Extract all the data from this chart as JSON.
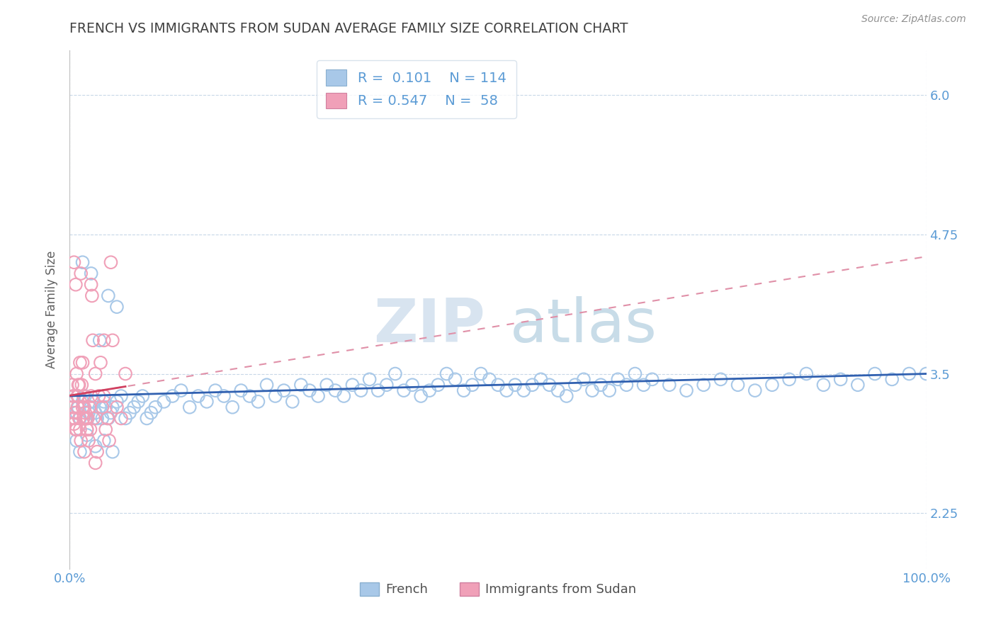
{
  "title": "FRENCH VS IMMIGRANTS FROM SUDAN AVERAGE FAMILY SIZE CORRELATION CHART",
  "source_text": "Source: ZipAtlas.com",
  "ylabel": "Average Family Size",
  "x_tick_labels": [
    "0.0%",
    "100.0%"
  ],
  "y_ticks": [
    2.25,
    3.5,
    4.75,
    6.0
  ],
  "x_min": 0.0,
  "x_max": 1.0,
  "y_min": 1.75,
  "y_max": 6.4,
  "french_color": "#a8c8e8",
  "sudan_color": "#f0a0b8",
  "french_line_color": "#3060b0",
  "sudan_line_color": "#d04060",
  "sudan_line_dashed_color": "#e090a8",
  "title_color": "#404040",
  "axis_label_color": "#5b9bd5",
  "ylabel_color": "#606060",
  "watermark_zip_color": "#d8e4f0",
  "watermark_atlas_color": "#c8dce8",
  "grid_color": "#c8d8e8",
  "border_color": "#c0c0c0",
  "french_scatter_x": [
    0.005,
    0.008,
    0.01,
    0.012,
    0.015,
    0.018,
    0.02,
    0.022,
    0.025,
    0.028,
    0.03,
    0.032,
    0.035,
    0.038,
    0.04,
    0.042,
    0.045,
    0.048,
    0.05,
    0.055,
    0.06,
    0.065,
    0.07,
    0.075,
    0.08,
    0.085,
    0.09,
    0.095,
    0.1,
    0.11,
    0.12,
    0.13,
    0.14,
    0.15,
    0.16,
    0.17,
    0.18,
    0.19,
    0.2,
    0.21,
    0.22,
    0.23,
    0.24,
    0.25,
    0.26,
    0.27,
    0.28,
    0.29,
    0.3,
    0.31,
    0.32,
    0.33,
    0.34,
    0.35,
    0.36,
    0.37,
    0.38,
    0.39,
    0.4,
    0.41,
    0.42,
    0.43,
    0.44,
    0.45,
    0.46,
    0.47,
    0.48,
    0.49,
    0.5,
    0.51,
    0.52,
    0.53,
    0.54,
    0.55,
    0.56,
    0.57,
    0.58,
    0.59,
    0.6,
    0.61,
    0.62,
    0.63,
    0.64,
    0.65,
    0.66,
    0.67,
    0.68,
    0.7,
    0.72,
    0.74,
    0.76,
    0.78,
    0.8,
    0.82,
    0.84,
    0.86,
    0.88,
    0.9,
    0.92,
    0.94,
    0.96,
    0.98,
    1.0,
    0.015,
    0.025,
    0.035,
    0.045,
    0.055,
    0.008,
    0.012,
    0.02,
    0.03,
    0.04,
    0.05
  ],
  "french_scatter_y": [
    3.3,
    3.15,
    3.2,
    3.1,
    3.25,
    3.3,
    3.1,
    3.15,
    3.2,
    3.25,
    3.15,
    3.1,
    3.2,
    3.1,
    3.25,
    3.2,
    3.1,
    3.15,
    3.2,
    3.25,
    3.3,
    3.1,
    3.15,
    3.2,
    3.25,
    3.3,
    3.1,
    3.15,
    3.2,
    3.25,
    3.3,
    3.35,
    3.2,
    3.3,
    3.25,
    3.35,
    3.3,
    3.2,
    3.35,
    3.3,
    3.25,
    3.4,
    3.3,
    3.35,
    3.25,
    3.4,
    3.35,
    3.3,
    3.4,
    3.35,
    3.3,
    3.4,
    3.35,
    3.45,
    3.35,
    3.4,
    3.5,
    3.35,
    3.4,
    3.3,
    3.35,
    3.4,
    3.5,
    3.45,
    3.35,
    3.4,
    3.5,
    3.45,
    3.4,
    3.35,
    3.4,
    3.35,
    3.4,
    3.45,
    3.4,
    3.35,
    3.3,
    3.4,
    3.45,
    3.35,
    3.4,
    3.35,
    3.45,
    3.4,
    3.5,
    3.4,
    3.45,
    3.4,
    3.35,
    3.4,
    3.45,
    3.4,
    3.35,
    3.4,
    3.45,
    3.5,
    3.4,
    3.45,
    3.4,
    3.5,
    3.45,
    3.5,
    3.5,
    4.5,
    4.4,
    3.8,
    4.2,
    4.1,
    2.9,
    2.8,
    2.95,
    2.85,
    2.9,
    2.8
  ],
  "sudan_scatter_x": [
    0.003,
    0.004,
    0.005,
    0.006,
    0.007,
    0.008,
    0.009,
    0.01,
    0.011,
    0.012,
    0.013,
    0.014,
    0.015,
    0.016,
    0.017,
    0.018,
    0.019,
    0.02,
    0.021,
    0.022,
    0.023,
    0.024,
    0.025,
    0.026,
    0.027,
    0.028,
    0.03,
    0.032,
    0.034,
    0.036,
    0.038,
    0.04,
    0.042,
    0.044,
    0.046,
    0.048,
    0.05,
    0.055,
    0.06,
    0.065,
    0.003,
    0.005,
    0.007,
    0.009,
    0.011,
    0.013,
    0.015,
    0.017,
    0.004,
    0.006,
    0.008,
    0.01,
    0.012,
    0.016,
    0.02,
    0.025,
    0.03,
    0.04
  ],
  "sudan_scatter_y": [
    3.1,
    3.2,
    3.05,
    3.15,
    3.0,
    3.5,
    3.2,
    3.3,
    3.1,
    3.0,
    2.9,
    3.4,
    3.2,
    3.3,
    2.8,
    3.15,
    3.1,
    3.0,
    3.1,
    2.9,
    3.2,
    3.0,
    4.3,
    4.2,
    3.8,
    3.1,
    2.7,
    2.8,
    3.3,
    3.6,
    3.2,
    3.3,
    3.0,
    3.1,
    2.9,
    4.5,
    3.8,
    3.2,
    3.1,
    3.5,
    3.4,
    4.5,
    4.3,
    3.3,
    3.4,
    4.4,
    3.6,
    3.2,
    3.3,
    3.1,
    3.0,
    3.4,
    3.6,
    3.1,
    3.0,
    3.3,
    3.5,
    3.8
  ]
}
